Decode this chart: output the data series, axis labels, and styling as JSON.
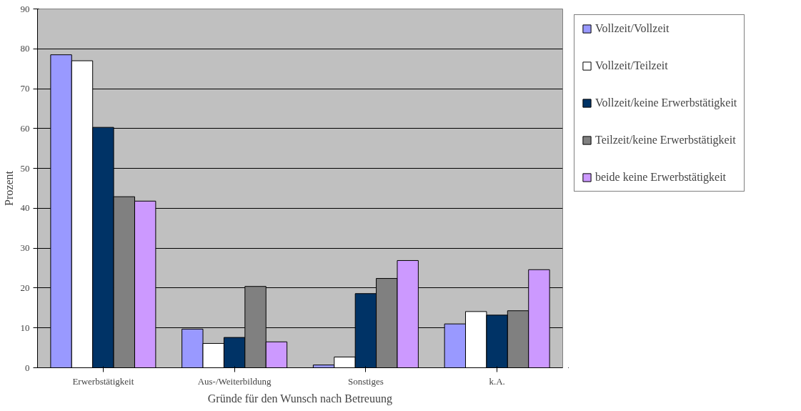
{
  "chart_data": {
    "type": "bar",
    "xlabel": "Gründe für den Wunsch nach Betreuung",
    "ylabel": "Prozent",
    "categories": [
      "Erwerbstätigkeit",
      "Aus-/Weiterbildung",
      "Sonstiges",
      "k.A."
    ],
    "series": [
      {
        "name": "Vollzeit/Vollzeit",
        "color": "#9999ff",
        "values": [
          78.5,
          9.7,
          0.7,
          11
        ]
      },
      {
        "name": "Vollzeit/Teilzeit",
        "color": "#ffffff",
        "values": [
          77,
          6.1,
          2.7,
          14.1
        ]
      },
      {
        "name": "Vollzeit/keine Erwerbstätigkeit",
        "color": "#003366",
        "values": [
          60.3,
          7.6,
          18.6,
          13.2
        ]
      },
      {
        "name": "Teilzeit/keine Erwerbstätigkeit",
        "color": "#808080",
        "values": [
          42.9,
          20.4,
          22.4,
          14.3
        ]
      },
      {
        "name": "beide keine Erwerbstätigkeit",
        "color": "#cc99ff",
        "values": [
          41.8,
          6.5,
          26.9,
          24.6
        ]
      }
    ],
    "ylim": [
      0,
      90
    ],
    "yticks": [
      0,
      10,
      20,
      30,
      40,
      50,
      60,
      70,
      80,
      90
    ],
    "grid": "y",
    "legend": "right"
  }
}
